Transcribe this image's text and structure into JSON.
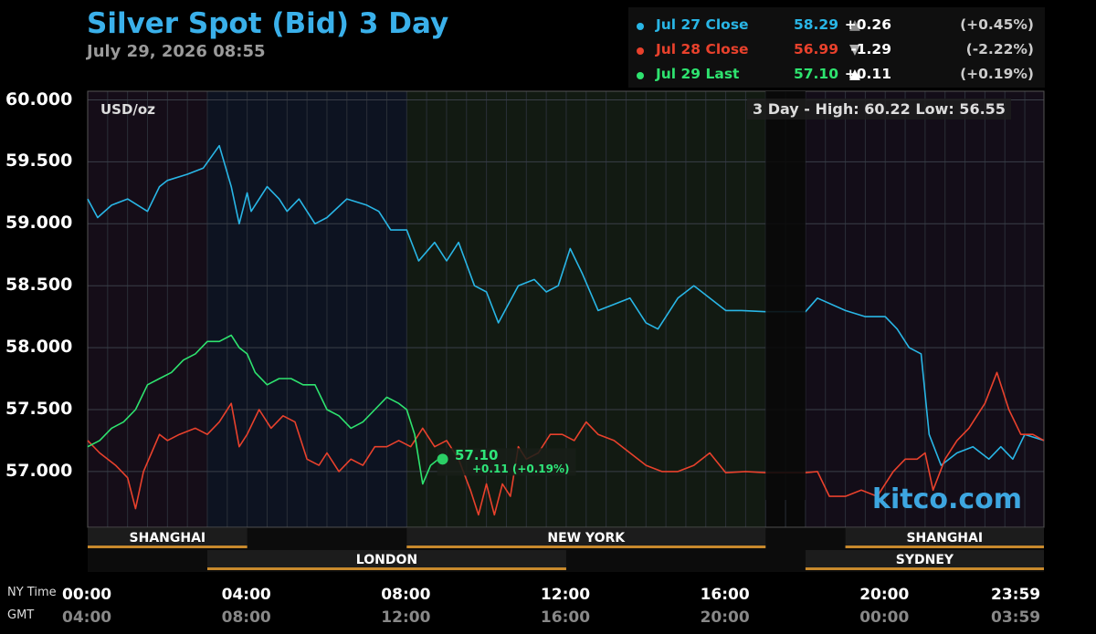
{
  "header": {
    "title": "Silver Spot (Bid) 3 Day",
    "timestamp": "July 29, 2026 08:55"
  },
  "legend": [
    {
      "name": "Jul 27 Close",
      "value": "58.29",
      "arrow": "▲",
      "change": "+0.26",
      "pct": "(+0.45%)",
      "color": "#29b6e6",
      "arrow_color": "#888888"
    },
    {
      "name": "Jul 28 Close",
      "value": "56.99",
      "arrow": "▼",
      "change": "-1.29",
      "pct": "(-2.22%)",
      "color": "#e8412c",
      "arrow_color": "#aaaaaa"
    },
    {
      "name": "Jul 29 Last",
      "value": "57.10",
      "arrow": "▲",
      "change": "+0.11",
      "pct": "(+0.19%)",
      "color": "#2ee36f",
      "arrow_color": "#ffffff"
    }
  ],
  "unit_label": "USD/oz",
  "high_low": "3 Day - High: 60.22  Low: 56.55",
  "watermark": "kitco.com",
  "current_price": {
    "value": "57.10",
    "change": "+0.11 (+0.19%)"
  },
  "axis_side_labels": {
    "ny": "NY Time",
    "gmt": "GMT"
  },
  "sessions": [
    {
      "name": "SHANGHAI",
      "row": 1,
      "start": 0,
      "end": 4
    },
    {
      "name": "NEW YORK",
      "row": 1,
      "start": 8,
      "end": 17
    },
    {
      "name": "SHANGHAI",
      "row": 1,
      "start": 19,
      "end": 23.98
    },
    {
      "name": "LONDON",
      "row": 2,
      "start": 3,
      "end": 12
    },
    {
      "name": "SYDNEY",
      "row": 2,
      "start": 18,
      "end": 23.98
    }
  ],
  "chart_data": {
    "type": "line",
    "title": "Silver Spot (Bid) 3 Day",
    "ylabel": "USD/oz",
    "ylim": [
      56.55,
      60.07
    ],
    "xlim": [
      0,
      23.98
    ],
    "y_ticks": [
      "60.000",
      "59.500",
      "59.000",
      "58.500",
      "58.000",
      "57.500",
      "57.000"
    ],
    "y_tick_values": [
      60.0,
      59.5,
      59.0,
      58.5,
      58.0,
      57.5,
      57.0
    ],
    "x_ticks_ny": [
      "00:00",
      "04:00",
      "08:00",
      "12:00",
      "16:00",
      "20:00",
      "23:59"
    ],
    "x_ticks_gmt": [
      "04:00",
      "08:00",
      "12:00",
      "16:00",
      "20:00",
      "00:00",
      "03:59"
    ],
    "x_tick_hours": [
      0,
      4,
      8,
      12,
      16,
      20,
      23.98
    ],
    "market_closed": [
      17,
      18
    ],
    "grid": true,
    "legend_position": "top-right",
    "series": [
      {
        "name": "Jul 27 Close",
        "color": "#29b6e6",
        "x": [
          0,
          0.25,
          0.6,
          1.0,
          1.5,
          1.8,
          2.0,
          2.5,
          2.9,
          3.3,
          3.6,
          3.8,
          4.0,
          4.1,
          4.5,
          4.8,
          5.0,
          5.3,
          5.7,
          6.0,
          6.5,
          7.0,
          7.3,
          7.6,
          8.0,
          8.3,
          8.7,
          9.0,
          9.3,
          9.7,
          10.0,
          10.3,
          10.8,
          11.2,
          11.5,
          11.8,
          12.1,
          12.4,
          12.8,
          13.2,
          13.6,
          14.0,
          14.3,
          14.8,
          15.2,
          15.6,
          16.0,
          16.4,
          17.0,
          18.0,
          18.3,
          19.0,
          19.5,
          20.0,
          20.3,
          20.6,
          20.9,
          21.1,
          21.4,
          21.8,
          22.2,
          22.6,
          22.9,
          23.2,
          23.5,
          23.98
        ],
        "y": [
          59.2,
          59.05,
          59.15,
          59.2,
          59.1,
          59.3,
          59.35,
          59.4,
          59.45,
          59.63,
          59.3,
          59.0,
          59.25,
          59.1,
          59.3,
          59.2,
          59.1,
          59.2,
          59.0,
          59.05,
          59.2,
          59.15,
          59.1,
          58.95,
          58.95,
          58.7,
          58.85,
          58.7,
          58.85,
          58.5,
          58.45,
          58.2,
          58.5,
          58.55,
          58.45,
          58.5,
          58.8,
          58.6,
          58.3,
          58.35,
          58.4,
          58.2,
          58.15,
          58.4,
          58.5,
          58.4,
          58.3,
          58.3,
          58.29,
          58.29,
          58.4,
          58.3,
          58.25,
          58.25,
          58.15,
          58.0,
          57.95,
          57.3,
          57.05,
          57.15,
          57.2,
          57.1,
          57.2,
          57.1,
          57.3,
          57.25
        ]
      },
      {
        "name": "Jul 28 Close",
        "color": "#e8412c",
        "x": [
          0,
          0.3,
          0.7,
          1.0,
          1.2,
          1.4,
          1.6,
          1.8,
          2.0,
          2.3,
          2.7,
          3.0,
          3.3,
          3.6,
          3.8,
          4.0,
          4.3,
          4.6,
          4.9,
          5.2,
          5.5,
          5.8,
          6.0,
          6.3,
          6.6,
          6.9,
          7.2,
          7.5,
          7.8,
          8.1,
          8.4,
          8.7,
          9.0,
          9.3,
          9.6,
          9.8,
          10.0,
          10.2,
          10.4,
          10.6,
          10.8,
          11.0,
          11.3,
          11.6,
          11.9,
          12.2,
          12.5,
          12.8,
          13.2,
          13.6,
          14.0,
          14.4,
          14.8,
          15.2,
          15.6,
          16.0,
          16.5,
          17.0,
          18.0,
          18.3,
          18.6,
          19.0,
          19.4,
          19.8,
          20.2,
          20.5,
          20.8,
          21.0,
          21.2,
          21.5,
          21.8,
          22.1,
          22.5,
          22.8,
          23.1,
          23.4,
          23.7,
          23.98
        ],
        "y": [
          57.25,
          57.15,
          57.05,
          56.95,
          56.7,
          57.0,
          57.15,
          57.3,
          57.25,
          57.3,
          57.35,
          57.3,
          57.4,
          57.55,
          57.2,
          57.3,
          57.5,
          57.35,
          57.45,
          57.4,
          57.1,
          57.05,
          57.15,
          57.0,
          57.1,
          57.05,
          57.2,
          57.2,
          57.25,
          57.2,
          57.35,
          57.2,
          57.25,
          57.1,
          56.85,
          56.65,
          56.9,
          56.65,
          56.9,
          56.8,
          57.2,
          57.1,
          57.15,
          57.3,
          57.3,
          57.25,
          57.4,
          57.3,
          57.25,
          57.15,
          57.05,
          57.0,
          57.0,
          57.05,
          57.15,
          56.99,
          57.0,
          56.99,
          56.99,
          57.0,
          56.8,
          56.8,
          56.85,
          56.8,
          57.0,
          57.1,
          57.1,
          57.15,
          56.85,
          57.1,
          57.25,
          57.35,
          57.55,
          57.8,
          57.5,
          57.3,
          57.3,
          57.25
        ]
      },
      {
        "name": "Jul 29 Last",
        "color": "#2ee36f",
        "x": [
          0,
          0.3,
          0.6,
          0.9,
          1.2,
          1.5,
          1.8,
          2.1,
          2.4,
          2.7,
          3.0,
          3.3,
          3.6,
          3.8,
          4.0,
          4.2,
          4.5,
          4.8,
          5.1,
          5.4,
          5.7,
          6.0,
          6.3,
          6.6,
          6.9,
          7.2,
          7.5,
          7.8,
          8.0,
          8.2,
          8.4,
          8.6,
          8.8,
          8.9
        ],
        "y": [
          57.2,
          57.25,
          57.35,
          57.4,
          57.5,
          57.7,
          57.75,
          57.8,
          57.9,
          57.95,
          58.05,
          58.05,
          58.1,
          58.0,
          57.95,
          57.8,
          57.7,
          57.75,
          57.75,
          57.7,
          57.7,
          57.5,
          57.45,
          57.35,
          57.4,
          57.5,
          57.6,
          57.55,
          57.5,
          57.3,
          56.9,
          57.05,
          57.1,
          57.1
        ]
      }
    ]
  }
}
